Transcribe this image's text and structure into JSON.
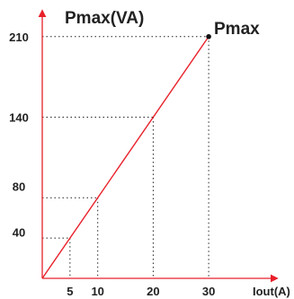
{
  "chart_data": {
    "type": "line",
    "ylabel": "Pmax(VA)",
    "xlabel": "Iout(A)",
    "point_label": "Pmax",
    "x_ticks": [
      5,
      10,
      20,
      30
    ],
    "y_ticks": [
      40,
      80,
      140,
      210
    ],
    "xlim": [
      0,
      40
    ],
    "ylim": [
      0,
      243
    ],
    "series": [
      {
        "x": [
          0,
          30
        ],
        "y": [
          0,
          210
        ]
      }
    ],
    "guides": [
      {
        "x": 5,
        "y": 35
      },
      {
        "x": 10,
        "y": 70
      },
      {
        "x": 20,
        "y": 140
      },
      {
        "x": 30,
        "y": 210
      }
    ],
    "highlight_point": {
      "x": 30,
      "y": 210
    },
    "grid": false,
    "colors": {
      "axis": "#e8202a",
      "line": "#e8202a",
      "guide": "#222222",
      "point": "#111111"
    }
  }
}
